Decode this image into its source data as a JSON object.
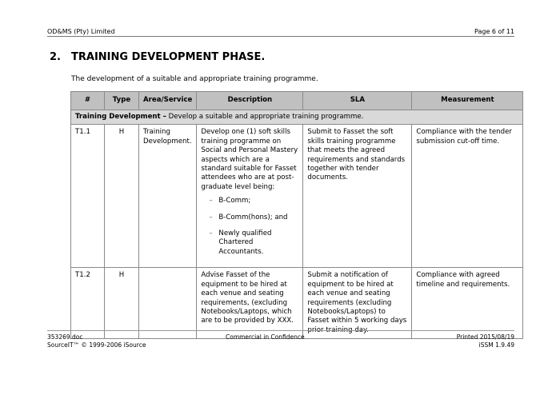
{
  "header": {
    "company": "OD&MS (Pty) Limited",
    "page": "Page 6 of 11"
  },
  "section": {
    "number": "2.",
    "title": "TRAINING DEVELOPMENT PHASE.",
    "intro": "The development of a suitable and appropriate training programme."
  },
  "table": {
    "headers": [
      "#",
      "Type",
      "Area/Service",
      "Description",
      "SLA",
      "Measurement"
    ],
    "section_row": {
      "bold": "Training Development –",
      "text": " Develop a suitable and appropriate training programme."
    },
    "rows": [
      {
        "id": "T1.1",
        "type": "H",
        "area": "Training Development.",
        "description": "Develop one (1) soft skills training programme on Social and Personal Mastery aspects which are a standard suitable for Fasset attendees who are at post-graduate level being:",
        "bullets": [
          "B-Comm;",
          "B-Comm(hons); and",
          "Newly qualified Chartered Accountants."
        ],
        "sla": "Submit to Fasset the soft skills training programme that meets the agreed requirements and standards together with tender documents.",
        "measurement": "Compliance with the tender submission cut-off time."
      },
      {
        "id": "T1.2",
        "type": "H",
        "area": "",
        "description": "Advise Fasset of the equipment to be hired at each venue and seating requirements, (excluding Notebooks/Laptops, which are to be provided by XXX.",
        "sla": "Submit a notification of equipment to be hired at each venue and seating requirements (excluding Notebooks/Laptops) to Fasset within 5 working days prior training day.",
        "measurement": "Compliance with agreed timeline and requirements."
      }
    ]
  },
  "footer": {
    "file": "353269.doc",
    "copyright": "SourceIT™ © 1999-2006 iSource",
    "confidentiality": "Commercial in Confidence",
    "printed": "Printed 2015/08/19",
    "version": "iSSM 1.9.49"
  }
}
